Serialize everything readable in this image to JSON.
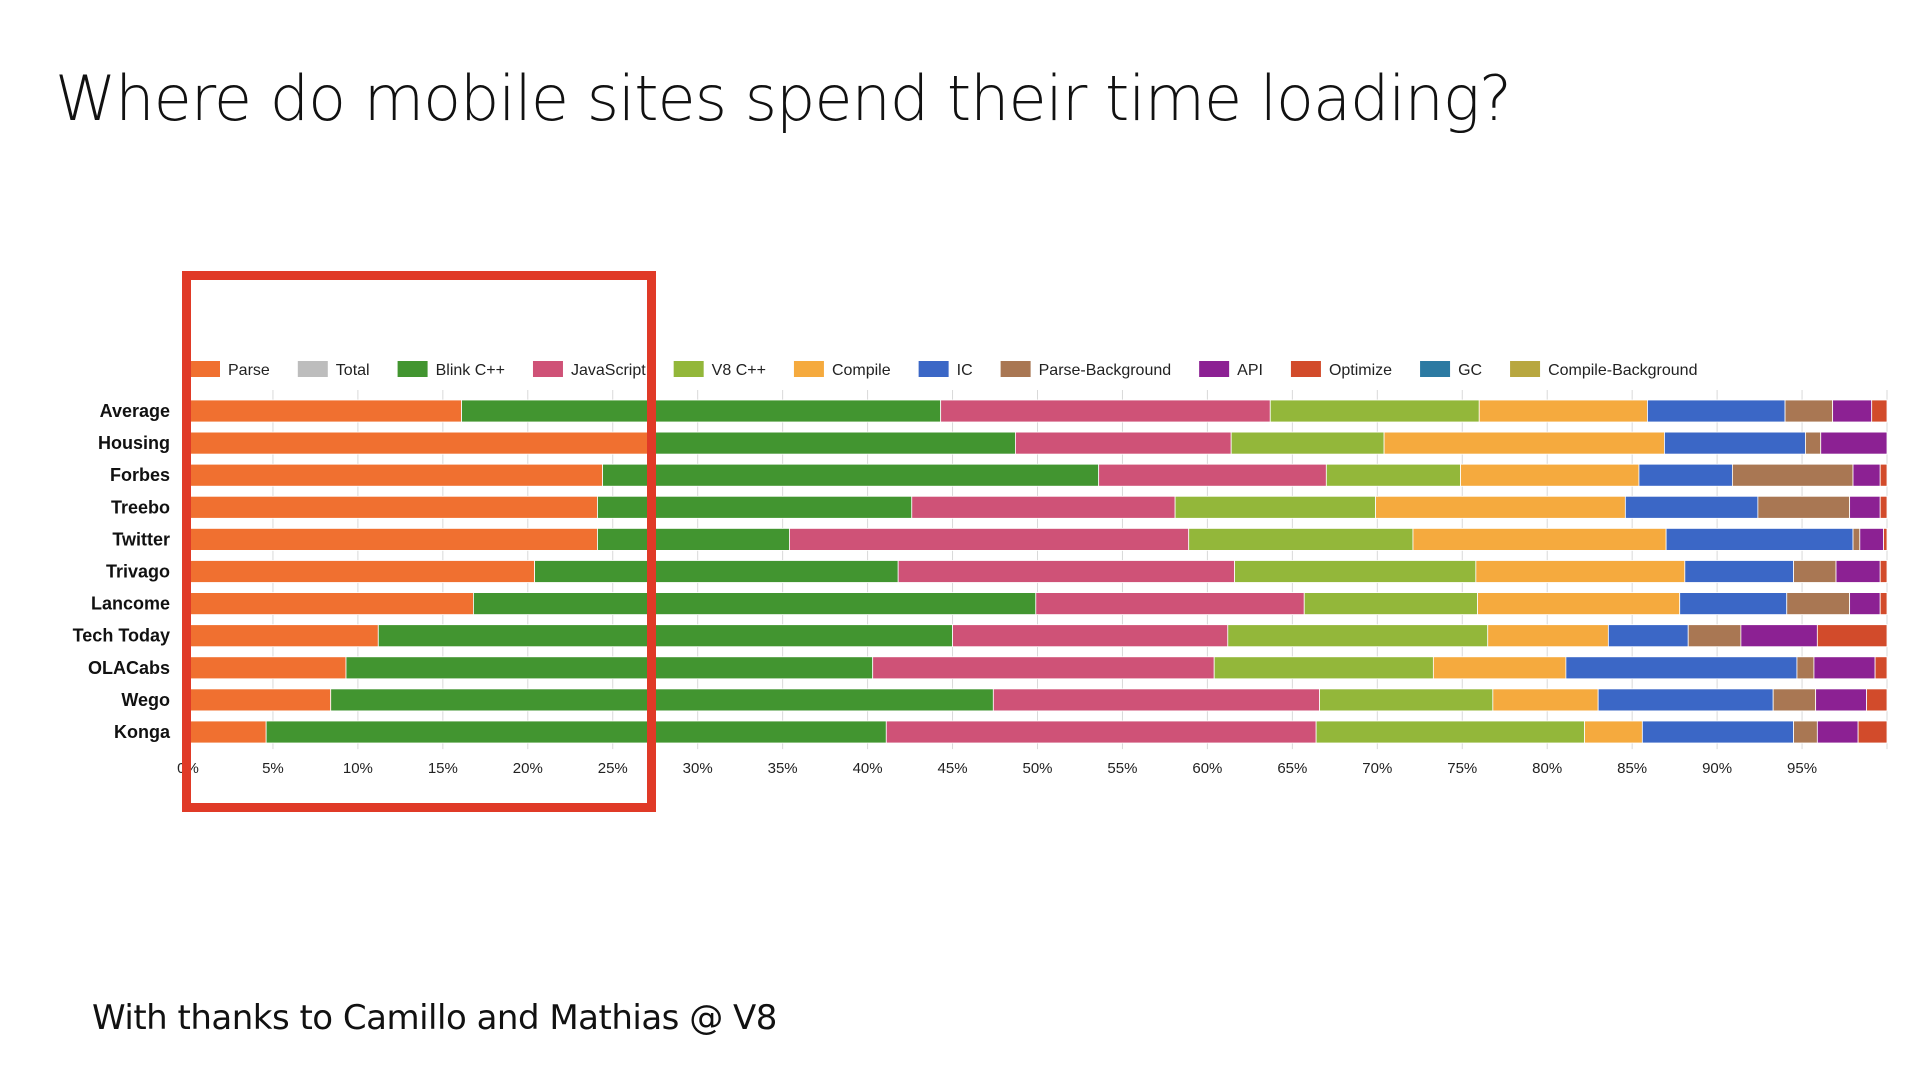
{
  "slide": {
    "title": "Where do mobile sites spend their time loading?",
    "footer": "With thanks to Camillo and Mathias @ V8",
    "highlight_color": "#e03a27"
  },
  "chart_data": {
    "type": "bar",
    "orientation": "horizontal",
    "stacked": true,
    "normalized": true,
    "title": "",
    "xlabel": "",
    "ylabel": "",
    "xlim": [
      0,
      100
    ],
    "x_ticks": [
      "0%",
      "5%",
      "10%",
      "15%",
      "20%",
      "25%",
      "30%",
      "35%",
      "40%",
      "45%",
      "50%",
      "55%",
      "60%",
      "65%",
      "70%",
      "75%",
      "80%",
      "85%",
      "90%",
      "95%"
    ],
    "grid": true,
    "legend_position": "top",
    "categories": [
      "Average",
      "Housing",
      "Forbes",
      "Treebo",
      "Twitter",
      "Trivago",
      "Lancome",
      "Tech Today",
      "OLACabs",
      "Wego",
      "Konga"
    ],
    "series": [
      {
        "name": "Parse",
        "color": "#f07030",
        "values": [
          16.1,
          27.3,
          24.4,
          24.1,
          24.1,
          20.4,
          16.8,
          11.2,
          9.3,
          8.4,
          4.6
        ]
      },
      {
        "name": "Total",
        "color": "#bdbdbd",
        "values": [
          0,
          0,
          0,
          0,
          0,
          0,
          0,
          0,
          0,
          0,
          0
        ]
      },
      {
        "name": "Blink C++",
        "color": "#429530",
        "values": [
          28.2,
          21.4,
          29.2,
          18.5,
          11.3,
          21.4,
          33.1,
          33.8,
          31.0,
          39.0,
          36.5
        ]
      },
      {
        "name": "JavaScript",
        "color": "#cf5277",
        "values": [
          19.4,
          12.7,
          13.4,
          15.5,
          23.5,
          19.8,
          15.8,
          16.2,
          20.1,
          19.2,
          25.3
        ]
      },
      {
        "name": "V8 C++",
        "color": "#93b73a",
        "values": [
          12.3,
          9.0,
          7.9,
          11.8,
          13.2,
          14.2,
          10.2,
          15.3,
          12.9,
          10.2,
          15.8
        ]
      },
      {
        "name": "Compile",
        "color": "#f5aa3e",
        "values": [
          9.9,
          16.5,
          10.5,
          14.7,
          14.9,
          12.3,
          11.9,
          7.1,
          7.8,
          6.2,
          3.4
        ]
      },
      {
        "name": "IC",
        "color": "#3b67c6",
        "values": [
          8.1,
          8.3,
          5.5,
          7.8,
          11.0,
          6.4,
          6.3,
          4.7,
          13.6,
          10.3,
          8.9
        ]
      },
      {
        "name": "Parse-Background",
        "color": "#a97753",
        "values": [
          2.8,
          0.9,
          7.1,
          5.4,
          0.4,
          2.5,
          3.7,
          3.1,
          1.0,
          2.5,
          1.4
        ]
      },
      {
        "name": "API",
        "color": "#8c2193",
        "values": [
          2.3,
          3.9,
          1.6,
          1.8,
          1.4,
          2.6,
          1.8,
          4.5,
          3.6,
          3.0,
          2.4
        ]
      },
      {
        "name": "Optimize",
        "color": "#d24b2b",
        "values": [
          0.9,
          0,
          0.4,
          0.4,
          0.2,
          0.4,
          0.4,
          4.1,
          0.7,
          1.2,
          1.7
        ]
      },
      {
        "name": "GC",
        "color": "#2c7aa2",
        "values": [
          0,
          0,
          0,
          0,
          0,
          0,
          0,
          0,
          0,
          0,
          0
        ]
      },
      {
        "name": "Compile-Background",
        "color": "#b8a740",
        "values": [
          0,
          0,
          0,
          0,
          0,
          0,
          0,
          0,
          0,
          0,
          0
        ]
      }
    ]
  }
}
